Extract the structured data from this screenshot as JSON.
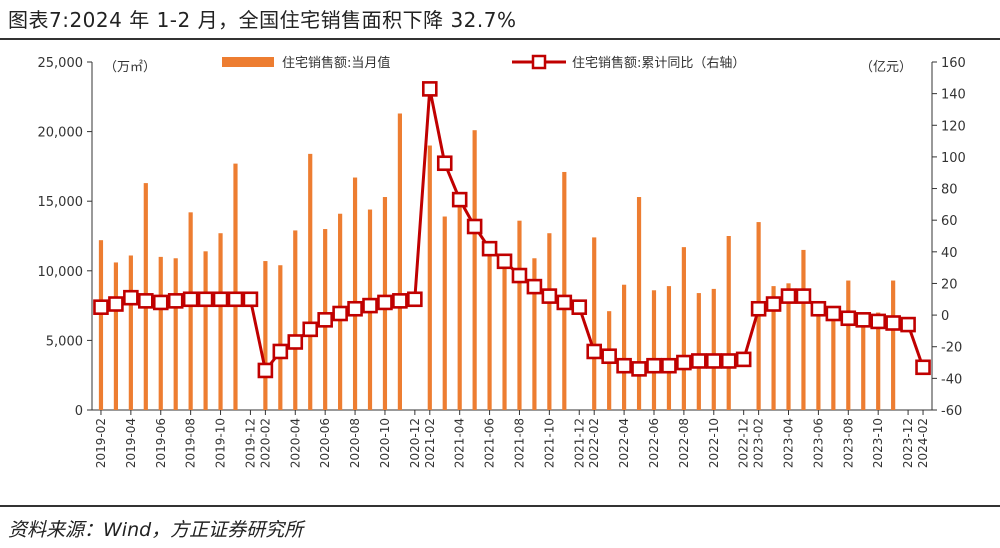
{
  "header": {
    "title": "图表7:2024 年 1-2 月，全国住宅销售面积下降 32.7%"
  },
  "footer": {
    "source": "资料来源：Wind，方正证券研究所"
  },
  "colors": {
    "bar": "#ED7D31",
    "line": "#C00000",
    "axis": "#333333"
  },
  "chart_data": {
    "type": "bar+line",
    "categories": [
      "2019-02",
      "2019-03",
      "2019-04",
      "2019-05",
      "2019-06",
      "2019-07",
      "2019-08",
      "2019-09",
      "2019-10",
      "2019-11",
      "2019-12",
      "2020-02",
      "2020-03",
      "2020-04",
      "2020-05",
      "2020-06",
      "2020-07",
      "2020-08",
      "2020-09",
      "2020-10",
      "2020-11",
      "2020-12",
      "2021-02",
      "2021-03",
      "2021-04",
      "2021-05",
      "2021-06",
      "2021-07",
      "2021-08",
      "2021-09",
      "2021-10",
      "2021-11",
      "2021-12",
      "2022-02",
      "2022-03",
      "2022-04",
      "2022-05",
      "2022-06",
      "2022-07",
      "2022-08",
      "2022-09",
      "2022-10",
      "2022-11",
      "2022-12",
      "2023-02",
      "2023-03",
      "2023-04",
      "2023-05",
      "2023-06",
      "2023-07",
      "2023-08",
      "2023-09",
      "2023-10",
      "2023-11",
      "2023-12",
      "2024-02"
    ],
    "xtick_labels": [
      "2019-02",
      "2019-04",
      "2019-06",
      "2019-08",
      "2019-10",
      "2019-12",
      "2020-02",
      "2020-04",
      "2020-06",
      "2020-08",
      "2020-10",
      "2020-12",
      "2021-02",
      "2021-04",
      "2021-06",
      "2021-08",
      "2021-10",
      "2021-12",
      "2022-02",
      "2022-04",
      "2022-06",
      "2022-08",
      "2022-10",
      "2022-12",
      "2023-02",
      "2023-04",
      "2023-06",
      "2023-08",
      "2023-10",
      "2023-12",
      "2024-02"
    ],
    "series": [
      {
        "name": "住宅销售额:当月值",
        "type": "bar",
        "axis": "left",
        "values": [
          12200,
          10600,
          11100,
          16300,
          11000,
          10900,
          14200,
          11400,
          12700,
          17700,
          null,
          10700,
          10400,
          12900,
          18400,
          13000,
          14100,
          16700,
          14400,
          15300,
          21300,
          null,
          19000,
          13900,
          15500,
          20100,
          12100,
          11200,
          13600,
          10900,
          12700,
          17100,
          null,
          12400,
          7100,
          9000,
          15300,
          8600,
          8900,
          11700,
          8400,
          8700,
          12500,
          null,
          13500,
          8900,
          9100,
          11500,
          7000,
          6500,
          9300,
          7000,
          7000,
          9300,
          null,
          null
        ]
      },
      {
        "name": "住宅销售额:累计同比（右轴）",
        "type": "line",
        "axis": "right",
        "values": [
          5,
          7,
          11,
          9,
          8,
          9,
          10,
          10,
          10,
          10,
          10,
          -35,
          -23,
          -17,
          -9,
          -3,
          1,
          4,
          6,
          8,
          9,
          10,
          143,
          96,
          73,
          56,
          42,
          34,
          25,
          18,
          12,
          8,
          5,
          -23,
          -26,
          -32,
          -34,
          -32,
          -32,
          -30,
          -29,
          -29,
          -29,
          -28,
          4,
          7,
          12,
          12,
          4,
          1,
          -2,
          -3,
          -4,
          -5,
          -6,
          -33
        ]
      }
    ],
    "y_left": {
      "min": 0,
      "max": 25000,
      "ticks": [
        "0",
        "5,000",
        "10,000",
        "15,000",
        "20,000",
        "25,000"
      ],
      "unit": "（万㎡）"
    },
    "y_right": {
      "min": -60,
      "max": 160,
      "ticks": [
        "-60",
        "-40",
        "-20",
        "0",
        "20",
        "40",
        "60",
        "80",
        "100",
        "120",
        "140",
        "160"
      ],
      "unit": "（亿元）"
    },
    "legend": [
      "住宅销售额:当月值",
      "住宅销售额:累计同比（右轴）"
    ],
    "legend_position": "top",
    "grid": false
  }
}
